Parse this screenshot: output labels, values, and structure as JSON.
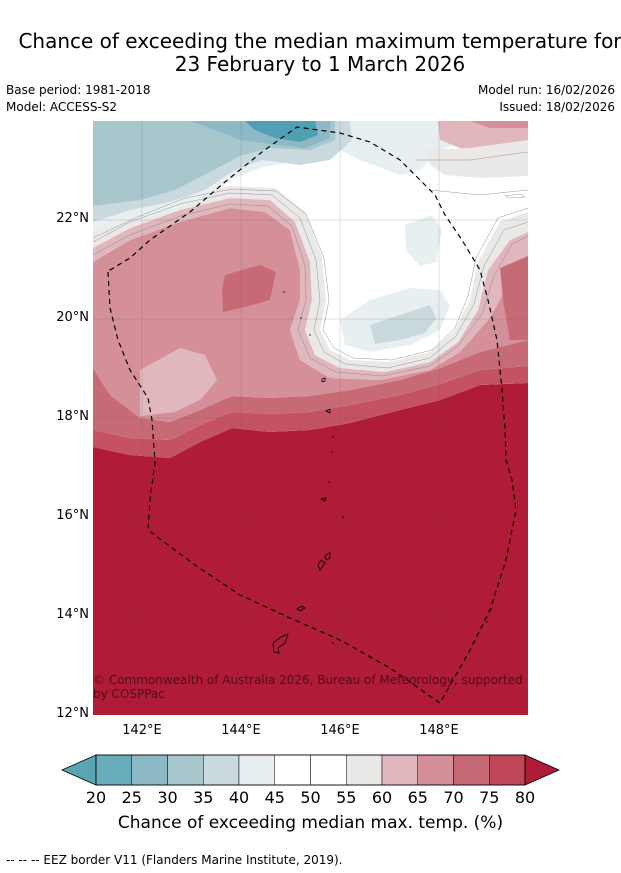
{
  "title_line1": "Chance of exceeding the median maximum temperature for",
  "title_line2": "23 February to 1 March 2026",
  "base_period": "Base period: 1981-2018",
  "model": "Model: ACCESS-S2",
  "model_run": "Model run: 16/02/2026",
  "issued": "Issued: 18/02/2026",
  "lat_labels": [
    "22°N",
    "20°N",
    "18°N",
    "16°N",
    "14°N",
    "12°N"
  ],
  "lon_labels": [
    "142°E",
    "144°E",
    "146°E",
    "148°E"
  ],
  "copyright": "© Commonwealth of Australia 2026, Bureau of Meteorology, supported by COSPPac",
  "colorbar": {
    "ticks": [
      "20",
      "25",
      "30",
      "35",
      "40",
      "45",
      "50",
      "55",
      "60",
      "65",
      "70",
      "75",
      "80"
    ],
    "label": "Chance of exceeding median max. temp. (%)",
    "colors": [
      "#5ba4b4",
      "#69adbd",
      "#8db9c6",
      "#a8c7cd",
      "#cad9dd",
      "#e8eff1",
      "#ffffff",
      "#ffffff",
      "#ebe8e8",
      "#e0b7bd",
      "#d48f98",
      "#c86a75",
      "#bf4657",
      "#b01c38"
    ]
  },
  "footer": "--  --  -- EEZ border V11 (Flanders Marine Institute, 2019).",
  "map_colors": {
    "c_teal_dark": "#4fa0b2",
    "c_teal": "#8db9c6",
    "c_teal_light": "#a8c7cd",
    "c_gray_blue": "#cad9dd",
    "c_pale_blue": "#e8eff1",
    "c_white": "#ffffff",
    "c_light_gray": "#ebe8e8",
    "c_pink_light": "#e0b7bd",
    "c_pink": "#d48f98",
    "c_rose": "#c86a75",
    "c_red": "#bf4657",
    "c_crimson": "#b01c38"
  }
}
